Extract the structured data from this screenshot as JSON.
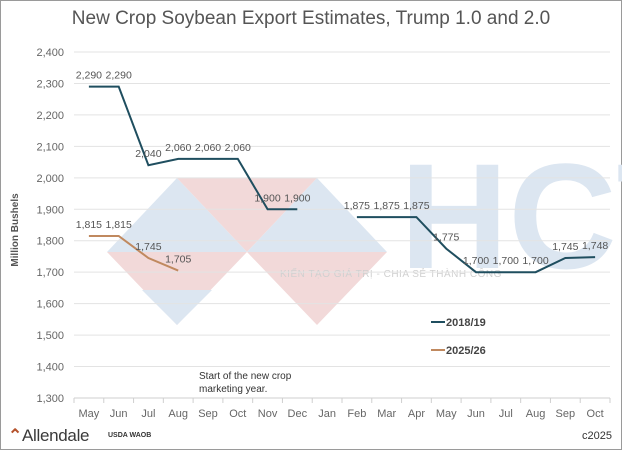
{
  "chart_data": {
    "type": "line",
    "title": "New Crop Soybean Export Estimates, Trump 1.0 and 2.0",
    "xlabel": "",
    "ylabel": "Million Bushels",
    "ylim": [
      1300,
      2400
    ],
    "yticks": [
      1300,
      1400,
      1500,
      1600,
      1700,
      1800,
      1900,
      2000,
      2100,
      2200,
      2300,
      2400
    ],
    "ytick_labels": [
      "1,300",
      "1,400",
      "1,500",
      "1,600",
      "1,700",
      "1,800",
      "1,900",
      "2,000",
      "2,100",
      "2,200",
      "2,300",
      "2,400"
    ],
    "categories": [
      "May",
      "Jun",
      "Jul",
      "Aug",
      "Sep",
      "Oct",
      "Nov",
      "Dec",
      "Jan",
      "Feb",
      "Mar",
      "Apr",
      "May",
      "Jun",
      "Jul",
      "Aug",
      "Sep",
      "Oct"
    ],
    "grid": true,
    "legend_position": "bottom-right",
    "series": [
      {
        "name": "2018/19",
        "color": "#1f4e5f",
        "values": [
          2290,
          2290,
          2040,
          2060,
          2060,
          2060,
          1900,
          1900,
          null,
          1875,
          1875,
          1875,
          1775,
          1700,
          1700,
          1700,
          1745,
          1748
        ],
        "labels": [
          "2,290",
          "2,290",
          "2,040",
          "2,060",
          "2,060",
          "2,060",
          "1,900",
          "1,900",
          null,
          "1,875",
          "1,875",
          "1,875",
          "1,775",
          "1,700",
          "1,700",
          "1,700",
          "1,745",
          "1,748"
        ]
      },
      {
        "name": "2025/26",
        "color": "#c0895f",
        "values": [
          1815,
          1815,
          1745,
          1705,
          null,
          null,
          null,
          null,
          null,
          null,
          null,
          null,
          null,
          null,
          null,
          null,
          null,
          null
        ],
        "labels": [
          "1,815",
          "1,815",
          "1,745",
          "1,705",
          null,
          null,
          null,
          null,
          null,
          null,
          null,
          null,
          null,
          null,
          null,
          null,
          null,
          null
        ]
      }
    ],
    "annotations": [
      "Start of the new crop",
      "marketing year."
    ]
  },
  "footer": {
    "logo": "Allendale",
    "source": "USDA WAOB",
    "copyright": "c2025"
  },
  "watermark": {
    "text": "HCT",
    "tagline": "KIẾN TẠO GIÁ TRỊ - CHIA SẺ THÀNH CÔNG"
  }
}
